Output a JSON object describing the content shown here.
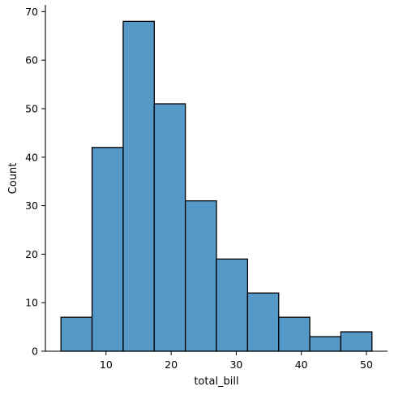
{
  "colors": {
    "bar_fill": "#5499c7",
    "bar_edge": "#000000",
    "axis": "#000000",
    "background": "#ffffff"
  },
  "chart_data": {
    "type": "bar",
    "title": "",
    "xlabel": "total_bill",
    "ylabel": "Count",
    "grid": false,
    "legend": "none",
    "bins": [
      {
        "start": 3.07,
        "end": 7.85,
        "count": 7
      },
      {
        "start": 7.85,
        "end": 12.63,
        "count": 42
      },
      {
        "start": 12.63,
        "end": 17.41,
        "count": 68
      },
      {
        "start": 17.41,
        "end": 22.18,
        "count": 51
      },
      {
        "start": 22.18,
        "end": 26.96,
        "count": 31
      },
      {
        "start": 26.96,
        "end": 31.74,
        "count": 19
      },
      {
        "start": 31.74,
        "end": 36.52,
        "count": 12
      },
      {
        "start": 36.52,
        "end": 41.3,
        "count": 7
      },
      {
        "start": 41.3,
        "end": 46.07,
        "count": 3
      },
      {
        "start": 46.07,
        "end": 50.85,
        "count": 4
      }
    ],
    "xlim": [
      0.68,
      53.24
    ],
    "ylim": [
      0,
      71.4
    ],
    "x_ticks": [
      10,
      20,
      30,
      40,
      50
    ],
    "x_tick_labels": [
      "10",
      "20",
      "30",
      "40",
      "50"
    ],
    "y_ticks": [
      0,
      10,
      20,
      30,
      40,
      50,
      60,
      70
    ],
    "y_tick_labels": [
      "0",
      "10",
      "20",
      "30",
      "40",
      "50",
      "60",
      "70"
    ]
  }
}
